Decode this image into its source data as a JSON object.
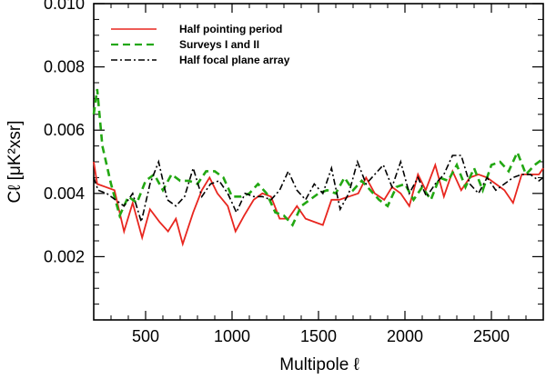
{
  "chart_data": {
    "type": "line",
    "title": "",
    "xlabel": "Multipole ℓ",
    "ylabel": "Cℓ [μK²xsr]",
    "xlim": [
      200,
      2800
    ],
    "ylim": [
      0.0,
      0.01
    ],
    "xticks": [
      500,
      1000,
      1500,
      2000,
      2500
    ],
    "xtick_labels": [
      "500",
      "1000",
      "1500",
      "2000",
      "2500"
    ],
    "yticks": [
      0.002,
      0.004,
      0.006,
      0.008,
      0.01
    ],
    "ytick_labels": [
      "0.002",
      "0.004",
      "0.006",
      "0.008",
      "0.010"
    ],
    "grid": false,
    "legend_position": "top-left",
    "series": [
      {
        "name": "Half pointing period",
        "color": "#e8261f",
        "style": "solid",
        "x": [
          200,
          220,
          270,
          320,
          375,
          425,
          480,
          525,
          580,
          630,
          675,
          715,
          775,
          825,
          870,
          915,
          975,
          1020,
          1070,
          1125,
          1175,
          1225,
          1275,
          1325,
          1375,
          1425,
          1475,
          1525,
          1575,
          1620,
          1675,
          1730,
          1775,
          1825,
          1880,
          1925,
          1975,
          2025,
          2075,
          2120,
          2175,
          2225,
          2275,
          2325,
          2375,
          2425,
          2475,
          2525,
          2575,
          2625,
          2675,
          2725,
          2775,
          2800
        ],
        "y": [
          0.005,
          0.0043,
          0.0042,
          0.0041,
          0.0028,
          0.0037,
          0.0026,
          0.0035,
          0.0031,
          0.0028,
          0.0032,
          0.0024,
          0.0034,
          0.0041,
          0.0045,
          0.004,
          0.0036,
          0.0028,
          0.0033,
          0.0038,
          0.004,
          0.0039,
          0.0032,
          0.0032,
          0.0036,
          0.0032,
          0.0031,
          0.003,
          0.0038,
          0.0038,
          0.0039,
          0.004,
          0.0045,
          0.004,
          0.0038,
          0.0042,
          0.004,
          0.0036,
          0.0046,
          0.0041,
          0.0049,
          0.0039,
          0.0047,
          0.0041,
          0.0045,
          0.0046,
          0.0045,
          0.0043,
          0.0041,
          0.0037,
          0.0046,
          0.0046,
          0.0046,
          0.0048
        ]
      },
      {
        "name": "Surveys I and II",
        "color": "#22a712",
        "style": "dashed",
        "x": [
          200,
          220,
          250,
          300,
          350,
          400,
          450,
          500,
          550,
          600,
          650,
          700,
          750,
          800,
          850,
          900,
          950,
          1000,
          1050,
          1100,
          1150,
          1200,
          1250,
          1300,
          1350,
          1400,
          1450,
          1500,
          1550,
          1600,
          1650,
          1700,
          1750,
          1800,
          1850,
          1900,
          1950,
          2000,
          2050,
          2100,
          2150,
          2200,
          2250,
          2300,
          2350,
          2400,
          2450,
          2500,
          2550,
          2600,
          2650,
          2700,
          2750,
          2800
        ],
        "y": [
          0.0065,
          0.0073,
          0.0055,
          0.0043,
          0.0033,
          0.0039,
          0.0037,
          0.0044,
          0.0046,
          0.0041,
          0.0046,
          0.0044,
          0.0044,
          0.0043,
          0.0047,
          0.0047,
          0.0045,
          0.0039,
          0.0039,
          0.004,
          0.0043,
          0.004,
          0.0034,
          0.0033,
          0.003,
          0.0036,
          0.0038,
          0.004,
          0.0041,
          0.004,
          0.0045,
          0.0041,
          0.0044,
          0.0041,
          0.0038,
          0.0036,
          0.0042,
          0.0043,
          0.0038,
          0.0042,
          0.0038,
          0.0045,
          0.0044,
          0.0049,
          0.0042,
          0.0048,
          0.0041,
          0.0049,
          0.005,
          0.0047,
          0.0053,
          0.0046,
          0.0049,
          0.0051
        ]
      },
      {
        "name": "Half focal plane array",
        "color": "#000000",
        "style": "dashdot",
        "x": [
          200,
          225,
          275,
          325,
          375,
          425,
          475,
          525,
          575,
          625,
          675,
          725,
          775,
          825,
          875,
          925,
          975,
          1025,
          1075,
          1125,
          1175,
          1225,
          1275,
          1325,
          1375,
          1425,
          1475,
          1525,
          1575,
          1625,
          1675,
          1725,
          1775,
          1825,
          1875,
          1925,
          1975,
          2025,
          2075,
          2125,
          2175,
          2225,
          2275,
          2325,
          2375,
          2425,
          2475,
          2525,
          2575,
          2625,
          2675,
          2725,
          2775,
          2800
        ],
        "y": [
          0.0045,
          0.0041,
          0.004,
          0.0038,
          0.0036,
          0.004,
          0.0031,
          0.0043,
          0.005,
          0.0038,
          0.0036,
          0.0039,
          0.0048,
          0.0039,
          0.0043,
          0.0044,
          0.004,
          0.0034,
          0.004,
          0.0039,
          0.0039,
          0.0038,
          0.0041,
          0.0047,
          0.0041,
          0.0038,
          0.0043,
          0.004,
          0.0048,
          0.0035,
          0.004,
          0.005,
          0.0043,
          0.0046,
          0.0049,
          0.0042,
          0.005,
          0.004,
          0.0045,
          0.0039,
          0.0043,
          0.0046,
          0.0052,
          0.0052,
          0.0043,
          0.004,
          0.0045,
          0.0041,
          0.0043,
          0.0045,
          0.0046,
          0.0046,
          0.0044,
          0.0045
        ]
      }
    ]
  }
}
